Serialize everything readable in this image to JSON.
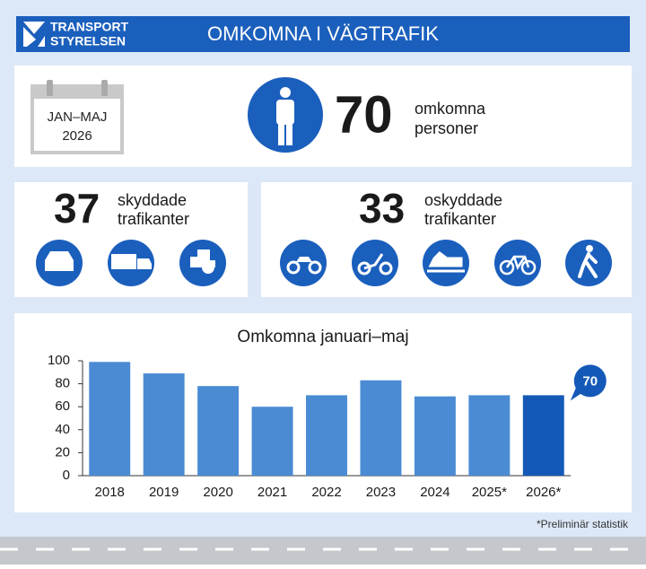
{
  "header": {
    "logo_line1": "TRANSPORT",
    "logo_line2": "STYRELSEN",
    "title": "OMKOMNA I VÄGTRAFIK"
  },
  "summary": {
    "period_line1": "JAN–MAJ",
    "period_line2": "2026",
    "total": "70",
    "total_label_line1": "omkomna",
    "total_label_line2": "personer"
  },
  "groups": [
    {
      "number": "37",
      "label_line1": "skyddade",
      "label_line2": "trafikanter"
    },
    {
      "number": "33",
      "label_line1": "oskyddade",
      "label_line2": "trafikanter"
    }
  ],
  "chart_data": {
    "type": "bar",
    "title": "Omkomna januari–maj",
    "categories": [
      "2018",
      "2019",
      "2020",
      "2021",
      "2022",
      "2023",
      "2024",
      "2025*",
      "2026*"
    ],
    "values": [
      99,
      89,
      78,
      60,
      70,
      83,
      69,
      70,
      70
    ],
    "colors": [
      "#4a8bd4",
      "#4a8bd4",
      "#4a8bd4",
      "#4a8bd4",
      "#4a8bd4",
      "#4a8bd4",
      "#4a8bd4",
      "#4a8bd4",
      "#1459b8"
    ],
    "ylim": [
      0,
      100
    ],
    "yticks": [
      0,
      20,
      40,
      60,
      80,
      100
    ],
    "grid": false
  },
  "footnote": "*Preliminär statistik"
}
